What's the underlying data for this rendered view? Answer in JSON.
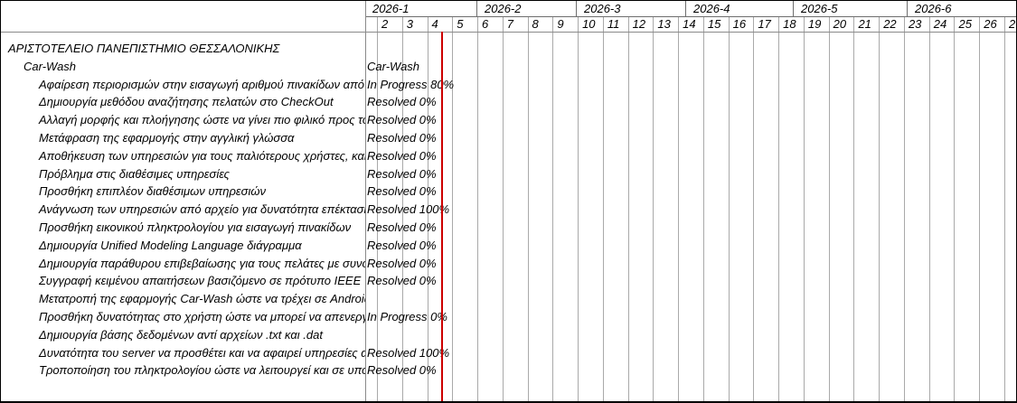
{
  "header": {
    "months": [
      "2026-1",
      "2026-2",
      "2026-3",
      "2026-4",
      "2026-5",
      "2026-6"
    ],
    "weeks": [
      "2",
      "3",
      "4",
      "5",
      "6",
      "7",
      "8",
      "9",
      "10",
      "11",
      "12",
      "13",
      "14",
      "15",
      "16",
      "17",
      "18",
      "19",
      "20",
      "21",
      "22",
      "23",
      "24",
      "25",
      "26"
    ],
    "partial_week": "2"
  },
  "tasks": [
    {
      "name": "ΑΡΙΣΤΟΤΕΛΕΙΟ ΠΑΝΕΠΙΣΤΗΜΙΟ ΘΕΣΣΑΛΟΝΙΚΗΣ",
      "level": 0,
      "status": ""
    },
    {
      "name": "Car-Wash",
      "level": 1,
      "status": "Car-Wash"
    },
    {
      "name": "Αφαίρεση περιορισμών στην εισαγωγή αριθμού πινακίδων από το χρήστη",
      "level": 2,
      "status": "In Progress 80%"
    },
    {
      "name": "Δημιουργία μεθόδου αναζήτησης πελατών στο CheckOut",
      "level": 2,
      "status": "Resolved 0%"
    },
    {
      "name": "Αλλαγή μορφής και πλοήγησης ώστε να γίνει πιο φιλικό προς τον χρήστη",
      "level": 2,
      "status": "Resolved 0%"
    },
    {
      "name": "Μετάφραση της εφαρμογής στην αγγλική γλώσσα",
      "level": 2,
      "status": "Resolved 0%"
    },
    {
      "name": "Αποθήκευση των υπηρεσιών για τους παλιότερους χρήστες, και όχι",
      "level": 2,
      "status": "Resolved 0%"
    },
    {
      "name": "Πρόβλημα στις διαθέσιμες υπηρεσίες",
      "level": 2,
      "status": "Resolved 0%"
    },
    {
      "name": "Προσθήκη επιπλέον διαθέσιμων υπηρεσιών",
      "level": 2,
      "status": "Resolved 0%"
    },
    {
      "name": "Ανάγνωση των υπηρεσιών από αρχείο για δυνατότητα επέκτασης",
      "level": 2,
      "status": "Resolved 100%"
    },
    {
      "name": "Προσθήκη εικονικού πληκτρολογίου για εισαγωγή πινακίδων",
      "level": 2,
      "status": "Resolved 0%"
    },
    {
      "name": "Δημιουργία Unified Modeling Language διάγραμμα",
      "level": 2,
      "status": "Resolved 0%"
    },
    {
      "name": "Δημιουργία παράθυρου επιβεβαίωσης για τους πελάτες με συνοπτική",
      "level": 2,
      "status": "Resolved 0%"
    },
    {
      "name": "Συγγραφή κειμένου απαιτήσεων βασιζόμενο σε πρότυπο IEEE",
      "level": 2,
      "status": "Resolved 0%"
    },
    {
      "name": "Μετατροπή της εφαρμογής Car-Wash ώστε να τρέχει σε Android",
      "level": 2,
      "status": ""
    },
    {
      "name": "Προσθήκη δυνατότητας στο χρήστη ώστε να μπορεί να απενεργοποιεί",
      "level": 2,
      "status": "In Progress 0%"
    },
    {
      "name": "Δημιουργία βάσης δεδομένων αντί αρχείων .txt και .dat",
      "level": 2,
      "status": ""
    },
    {
      "name": "Δυνατότητα του server να προσθέτει και να αφαιρεί υπηρεσίες αλλά",
      "level": 2,
      "status": "Resolved 100%"
    },
    {
      "name": "Τροποποίηση του πληκτρολογίου ώστε να λειτουργεί και σε υπολογιστή",
      "level": 2,
      "status": "Resolved 0%"
    }
  ],
  "colors": {
    "today_line": "#cc0000",
    "grid_line": "#a9a9a9",
    "header_line": "#8a8a8a",
    "month_line": "#6e6e6e",
    "text": "#000000",
    "background": "#ffffff",
    "border": "#000000"
  }
}
